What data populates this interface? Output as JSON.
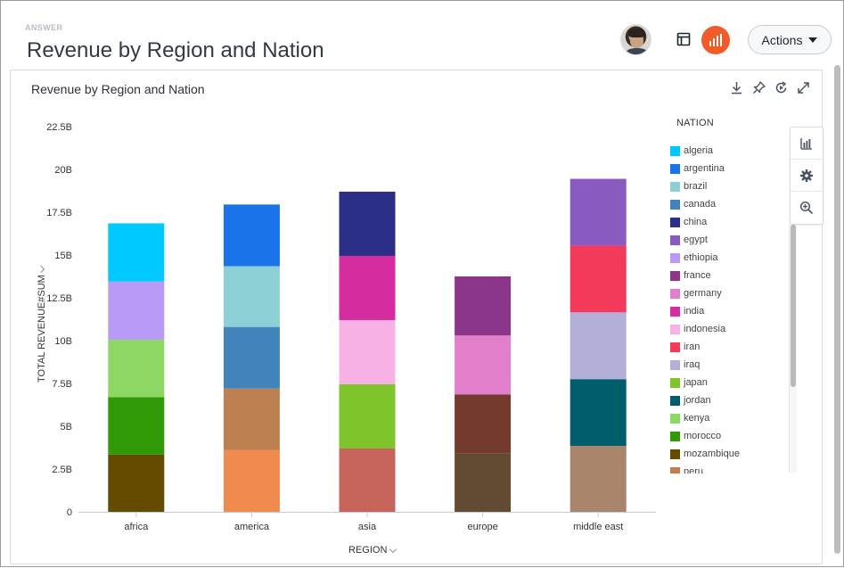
{
  "header": {
    "answer_label": "ANSWER",
    "title": "Revenue by Region and Nation",
    "actions_label": "Actions"
  },
  "card": {
    "title": "Revenue by Region and Nation"
  },
  "icons": {
    "table": "table-icon",
    "chart": "bar-chart-icon",
    "download": "download-icon",
    "pin": "pin-icon",
    "refresh": "refresh-icon",
    "expand": "expand-icon",
    "chart_config": "chart-config-icon",
    "settings": "gear-icon",
    "zoom": "zoom-icon"
  },
  "colors": {
    "accent": "#f15a29"
  },
  "legend": {
    "title": "NATION",
    "items": [
      {
        "label": "algeria",
        "color": "#00c9ff"
      },
      {
        "label": "argentina",
        "color": "#1a73e8"
      },
      {
        "label": "brazil",
        "color": "#8dd0d5"
      },
      {
        "label": "canada",
        "color": "#4183bb"
      },
      {
        "label": "china",
        "color": "#2b2e86"
      },
      {
        "label": "egypt",
        "color": "#8a5bbf"
      },
      {
        "label": "ethiopia",
        "color": "#b99af7"
      },
      {
        "label": "france",
        "color": "#8b3689"
      },
      {
        "label": "germany",
        "color": "#e27fcb"
      },
      {
        "label": "india",
        "color": "#d52c9f"
      },
      {
        "label": "indonesia",
        "color": "#f8b1e5"
      },
      {
        "label": "iran",
        "color": "#f43a5b"
      },
      {
        "label": "iraq",
        "color": "#b4afd8"
      },
      {
        "label": "japan",
        "color": "#7fc42b"
      },
      {
        "label": "jordan",
        "color": "#005e6b"
      },
      {
        "label": "kenya",
        "color": "#8dd864"
      },
      {
        "label": "morocco",
        "color": "#2f9a05"
      },
      {
        "label": "mozambique",
        "color": "#644b00"
      },
      {
        "label": "peru",
        "color": "#bd8050"
      }
    ]
  },
  "chart_data": {
    "type": "bar",
    "stacked": true,
    "title": "Revenue by Region and Nation",
    "xlabel": "REGION",
    "ylabel": "TOTAL REVENUE#SUM",
    "ylim": [
      0,
      22.5
    ],
    "yticks": [
      "0",
      "2.5B",
      "5B",
      "7.5B",
      "10B",
      "12.5B",
      "15B",
      "17.5B",
      "20B",
      "22.5B"
    ],
    "grid": false,
    "legend_position": "right",
    "categories": [
      "africa",
      "america",
      "asia",
      "europe",
      "middle east"
    ],
    "stacks": [
      {
        "category": "africa",
        "segments": [
          {
            "nation": "mozambique",
            "value": 3.35,
            "color": "#644b00"
          },
          {
            "nation": "morocco",
            "value": 3.35,
            "color": "#2f9a05"
          },
          {
            "nation": "kenya",
            "value": 3.35,
            "color": "#8dd864"
          },
          {
            "nation": "ethiopia",
            "value": 3.4,
            "color": "#b99af7"
          },
          {
            "nation": "algeria",
            "value": 3.4,
            "color": "#00c9ff"
          }
        ]
      },
      {
        "category": "america",
        "segments": [
          {
            "nation": "",
            "value": 3.6,
            "color": "#f08a4f"
          },
          {
            "nation": "peru",
            "value": 3.6,
            "color": "#bd8050"
          },
          {
            "nation": "canada",
            "value": 3.6,
            "color": "#4183bb"
          },
          {
            "nation": "brazil",
            "value": 3.55,
            "color": "#8dd0d5"
          },
          {
            "nation": "argentina",
            "value": 3.6,
            "color": "#1a73e8"
          }
        ]
      },
      {
        "category": "asia",
        "segments": [
          {
            "nation": "",
            "value": 3.7,
            "color": "#c7645b"
          },
          {
            "nation": "japan",
            "value": 3.75,
            "color": "#7fc42b"
          },
          {
            "nation": "indonesia",
            "value": 3.75,
            "color": "#f8b1e5"
          },
          {
            "nation": "india",
            "value": 3.75,
            "color": "#d52c9f"
          },
          {
            "nation": "china",
            "value": 3.75,
            "color": "#2b2e86"
          }
        ]
      },
      {
        "category": "europe",
        "segments": [
          {
            "nation": "",
            "value": 3.4,
            "color": "#634a33"
          },
          {
            "nation": "",
            "value": 3.45,
            "color": "#733a2d"
          },
          {
            "nation": "germany",
            "value": 3.45,
            "color": "#e27fcb"
          },
          {
            "nation": "france",
            "value": 3.45,
            "color": "#8b3689"
          }
        ]
      },
      {
        "category": "middle east",
        "segments": [
          {
            "nation": "",
            "value": 3.85,
            "color": "#a8856b"
          },
          {
            "nation": "jordan",
            "value": 3.9,
            "color": "#005e6b"
          },
          {
            "nation": "iraq",
            "value": 3.9,
            "color": "#b4afd8"
          },
          {
            "nation": "iran",
            "value": 3.9,
            "color": "#f43a5b"
          },
          {
            "nation": "egypt",
            "value": 3.9,
            "color": "#8a5bbf"
          }
        ]
      }
    ]
  }
}
